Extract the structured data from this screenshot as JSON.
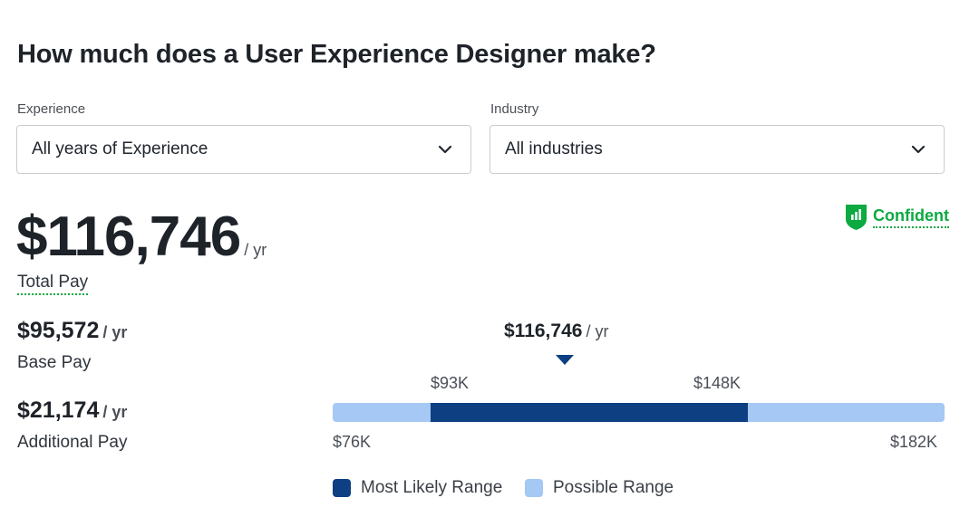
{
  "title": "How much does a User Experience Designer make?",
  "filters": {
    "experience": {
      "label": "Experience",
      "value": "All years of Experience"
    },
    "industry": {
      "label": "Industry",
      "value": "All industries"
    }
  },
  "total": {
    "amount": "$116,746",
    "unit": "/ yr",
    "label": "Total Pay"
  },
  "confidence": {
    "label": "Confident",
    "color": "#0caa41"
  },
  "base": {
    "amount": "$95,572",
    "unit": "/ yr",
    "label": "Base Pay"
  },
  "additional": {
    "amount": "$21,174",
    "unit": "/ yr",
    "label": "Additional Pay"
  },
  "range": {
    "marker_label": "$116,746",
    "marker_unit": "/ yr",
    "min_label": "$76K",
    "max_label": "$182K",
    "likely_low_label": "$93K",
    "likely_high_label": "$148K",
    "min": 76,
    "max": 182,
    "likely_low": 93,
    "likely_high": 148,
    "median": 116.746,
    "likely_color": "#0d3f82",
    "possible_color": "#a5c8f4"
  },
  "legend": {
    "likely": "Most Likely Range",
    "possible": "Possible Range"
  }
}
